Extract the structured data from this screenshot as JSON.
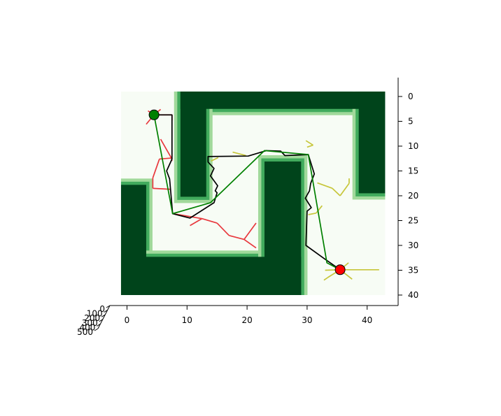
{
  "chart_data": {
    "type": "line",
    "title": "",
    "xlabel": "",
    "ylabel": "",
    "xlim": [
      -1,
      45
    ],
    "ylim": [
      41,
      -3
    ],
    "x_ticks": [
      0,
      10,
      20,
      30,
      40
    ],
    "y_ticks": [
      0,
      5,
      10,
      15,
      20,
      25,
      30,
      35,
      40
    ],
    "z_tick_labels": [
      "0",
      "100",
      "200",
      "300",
      "400",
      "500"
    ],
    "grid": false,
    "legend": "none",
    "colors": {
      "free_space": "#f7fcf5",
      "obstacle": "#00441b",
      "obstacle_edge_mid": "#41ab5d",
      "obstacle_edge_light": "#a1d99b",
      "start_tree": "#e8383d",
      "goal_tree": "#c7c63a",
      "raw_path": "#000000",
      "smoothed_path": "#008000",
      "start_marker": "#008000",
      "goal_marker": "#ff0000"
    },
    "map": {
      "x_range": [
        -1,
        43
      ],
      "y_range": [
        -1,
        40
      ]
    },
    "obstacles": [
      {
        "x0": 8.9,
        "x1": 43,
        "y0": -1,
        "y1": 2.5
      },
      {
        "x0": 8.9,
        "x1": 13.2,
        "y0": -1,
        "y1": 20.2
      },
      {
        "x0": 38.6,
        "x1": 43,
        "y0": -1,
        "y1": 19.5
      },
      {
        "x0": -1,
        "x1": 3.2,
        "y0": 17.8,
        "y1": 40
      },
      {
        "x0": -1,
        "x1": 29,
        "y0": 32.3,
        "y1": 40
      },
      {
        "x0": 22.9,
        "x1": 29,
        "y0": 13.1,
        "y1": 40
      }
    ],
    "start": {
      "x": 4.5,
      "y": 3.7
    },
    "goal": {
      "x": 35.5,
      "y": 34.9
    },
    "start_tree": [
      [
        [
          4.5,
          3.7
        ],
        [
          3.5,
          2.9
        ]
      ],
      [
        [
          4.5,
          3.7
        ],
        [
          5.6,
          2.6
        ]
      ],
      [
        [
          4.5,
          3.7
        ],
        [
          3.2,
          5.6
        ]
      ],
      [
        [
          4.5,
          3.7
        ],
        [
          7.5,
          3.7
        ]
      ],
      [
        [
          7.5,
          3.7
        ],
        [
          7.5,
          4.8
        ]
      ],
      [
        [
          5.6,
          8.6
        ],
        [
          7.4,
          12.4
        ]
      ],
      [
        [
          7.4,
          12.4
        ],
        [
          5.4,
          12.6
        ]
      ],
      [
        [
          5.4,
          12.6
        ],
        [
          4.3,
          16.4
        ]
      ],
      [
        [
          4.3,
          16.4
        ],
        [
          4.3,
          18.5
        ]
      ],
      [
        [
          4.3,
          18.5
        ],
        [
          7.3,
          18.7
        ]
      ],
      [
        [
          7.4,
          12.4
        ],
        [
          7.5,
          13.0
        ]
      ],
      [
        [
          7.6,
          23.6
        ],
        [
          12.5,
          24.6
        ]
      ],
      [
        [
          10.5,
          26.0
        ],
        [
          12.5,
          24.6
        ]
      ],
      [
        [
          12.5,
          24.6
        ],
        [
          15.0,
          25.5
        ]
      ],
      [
        [
          15.0,
          25.5
        ],
        [
          17.0,
          28.0
        ]
      ],
      [
        [
          17.0,
          28.0
        ],
        [
          19.5,
          28.8
        ]
      ],
      [
        [
          19.5,
          28.8
        ],
        [
          21.5,
          25.5
        ]
      ],
      [
        [
          19.5,
          28.8
        ],
        [
          21.5,
          30.5
        ]
      ]
    ],
    "goal_tree": [
      [
        [
          35.5,
          34.9
        ],
        [
          35.7,
          35.0
        ]
      ],
      [
        [
          35.5,
          34.9
        ],
        [
          33.4,
          36.5
        ]
      ],
      [
        [
          35.5,
          34.9
        ],
        [
          36.9,
          33.5
        ]
      ],
      [
        [
          35.5,
          34.9
        ],
        [
          37.5,
          36.8
        ]
      ],
      [
        [
          35.5,
          34.9
        ],
        [
          42.0,
          34.9
        ]
      ],
      [
        [
          35.5,
          34.9
        ],
        [
          33.0,
          35.0
        ]
      ],
      [
        [
          33.4,
          36.5
        ],
        [
          32.8,
          37.0
        ]
      ],
      [
        [
          31.7,
          17.4
        ],
        [
          34.2,
          18.5
        ]
      ],
      [
        [
          34.2,
          18.5
        ],
        [
          35.5,
          20.0
        ]
      ],
      [
        [
          35.5,
          20.0
        ],
        [
          37.0,
          17.5
        ]
      ],
      [
        [
          37.0,
          17.5
        ],
        [
          37.0,
          16.5
        ]
      ],
      [
        [
          31.5,
          23.5
        ],
        [
          30.2,
          23.8
        ]
      ],
      [
        [
          31.5,
          23.5
        ],
        [
          32.5,
          22.0
        ]
      ],
      [
        [
          29.8,
          8.9
        ],
        [
          31.0,
          9.8
        ]
      ],
      [
        [
          31.0,
          9.8
        ],
        [
          30.0,
          10.2
        ]
      ],
      [
        [
          15.2,
          12.3
        ],
        [
          14.0,
          13.0
        ]
      ],
      [
        [
          17.6,
          11.2
        ],
        [
          19.8,
          11.9
        ]
      ]
    ],
    "raw_path": [
      [
        4.5,
        3.7
      ],
      [
        7.5,
        3.7
      ],
      [
        7.5,
        12.6
      ],
      [
        6.6,
        15.0
      ],
      [
        7.1,
        16.6
      ],
      [
        7.6,
        23.6
      ],
      [
        10.5,
        24.5
      ],
      [
        14.5,
        21.4
      ],
      [
        15.0,
        19.4
      ],
      [
        14.7,
        19.0
      ],
      [
        15.1,
        18.0
      ],
      [
        13.9,
        16.0
      ],
      [
        14.5,
        14.5
      ],
      [
        13.5,
        13.2
      ],
      [
        13.5,
        12.1
      ],
      [
        20.2,
        12.0
      ],
      [
        23.2,
        10.9
      ],
      [
        25.6,
        11.0
      ],
      [
        26.3,
        11.9
      ],
      [
        30.2,
        11.7
      ],
      [
        31.2,
        15.6
      ],
      [
        30.6,
        17.5
      ],
      [
        30.4,
        19.0
      ],
      [
        29.7,
        20.5
      ],
      [
        30.7,
        22.4
      ],
      [
        30.0,
        23.1
      ],
      [
        29.9,
        26.8
      ],
      [
        29.8,
        30.0
      ],
      [
        32.9,
        32.7
      ],
      [
        35.5,
        34.9
      ]
    ],
    "smoothed_path": [
      [
        4.5,
        3.7
      ],
      [
        7.6,
        23.6
      ],
      [
        13.9,
        21.4
      ],
      [
        22.9,
        10.9
      ],
      [
        30.2,
        11.7
      ],
      [
        33.3,
        33.5
      ],
      [
        35.5,
        34.9
      ]
    ]
  }
}
